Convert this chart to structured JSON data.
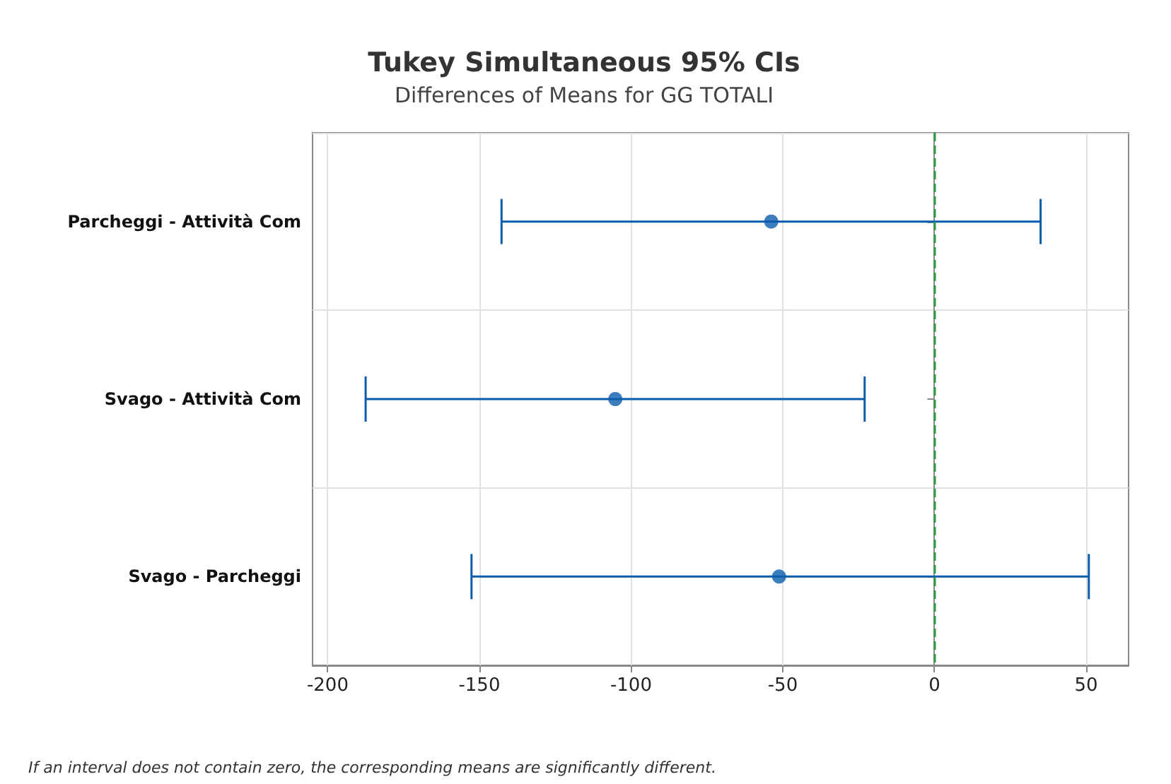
{
  "chart_data": {
    "type": "scatter",
    "orientation": "horizontal",
    "title": "Tukey Simultaneous 95% CIs",
    "subtitle": "Differences of Means for GG TOTALI",
    "categories": [
      "Parcheggi - Attività Com",
      "Svago - Attività Com",
      "Svago - Parcheggi"
    ],
    "series": [
      {
        "color": "#0b5cad",
        "values": [
          -53.8,
          -105.2,
          -51.2
        ],
        "errors": [
          [
            -142.7,
            35.0
          ],
          [
            -187.5,
            -23.0
          ],
          [
            -152.6,
            50.9
          ]
        ]
      }
    ],
    "xlim": [
      -205,
      64
    ],
    "xticks": [
      -200,
      -150,
      -100,
      -50,
      0,
      50
    ],
    "grid": true,
    "marker": "circle",
    "ref_lines": [
      {
        "axis": "x",
        "value": 0,
        "color": "#2e9b46",
        "line_style": "dashed"
      }
    ],
    "annotations": [
      "If an interval does not contain zero, the corresponding means are significantly different."
    ]
  }
}
